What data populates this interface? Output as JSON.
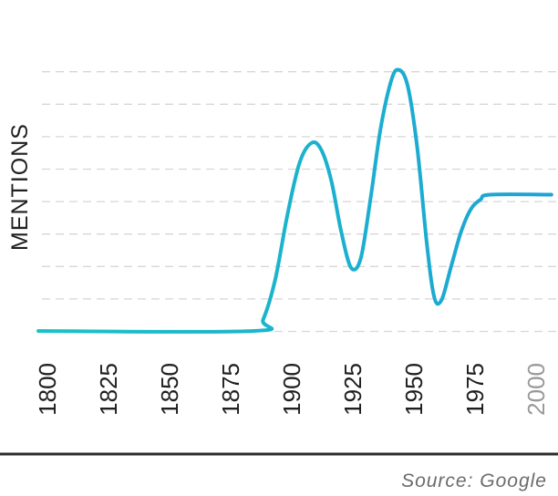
{
  "chart_data": {
    "type": "line",
    "ylabel": "MENTIONS",
    "xlabel": "",
    "x_ticks": [
      "1800",
      "1825",
      "1850",
      "1875",
      "1900",
      "1925",
      "1950",
      "1975",
      "2000"
    ],
    "muted_ticks": [
      "2000"
    ],
    "xlim": [
      1800,
      2010
    ],
    "ylim": [
      0,
      8
    ],
    "grid": true,
    "series": [
      {
        "color_start": "#17c3c7",
        "color_end": "#1ea3d4",
        "points": [
          [
            1800,
            0
          ],
          [
            1888,
            0
          ],
          [
            1892,
            0.35
          ],
          [
            1897,
            1.6
          ],
          [
            1902,
            3.6
          ],
          [
            1907,
            5.2
          ],
          [
            1912,
            5.8
          ],
          [
            1916,
            5.55
          ],
          [
            1920,
            4.6
          ],
          [
            1924,
            3.05
          ],
          [
            1928,
            1.95
          ],
          [
            1932,
            2.25
          ],
          [
            1936,
            4.1
          ],
          [
            1940,
            6.2
          ],
          [
            1944,
            7.6
          ],
          [
            1947,
            8.05
          ],
          [
            1951,
            7.6
          ],
          [
            1955,
            5.7
          ],
          [
            1959,
            2.7
          ],
          [
            1962,
            1.05
          ],
          [
            1965,
            0.95
          ],
          [
            1969,
            2.0
          ],
          [
            1973,
            3.05
          ],
          [
            1977,
            3.75
          ],
          [
            1981,
            4.05
          ],
          [
            1985,
            4.2
          ],
          [
            2010,
            4.2
          ]
        ]
      }
    ]
  },
  "source": "Source: Google"
}
